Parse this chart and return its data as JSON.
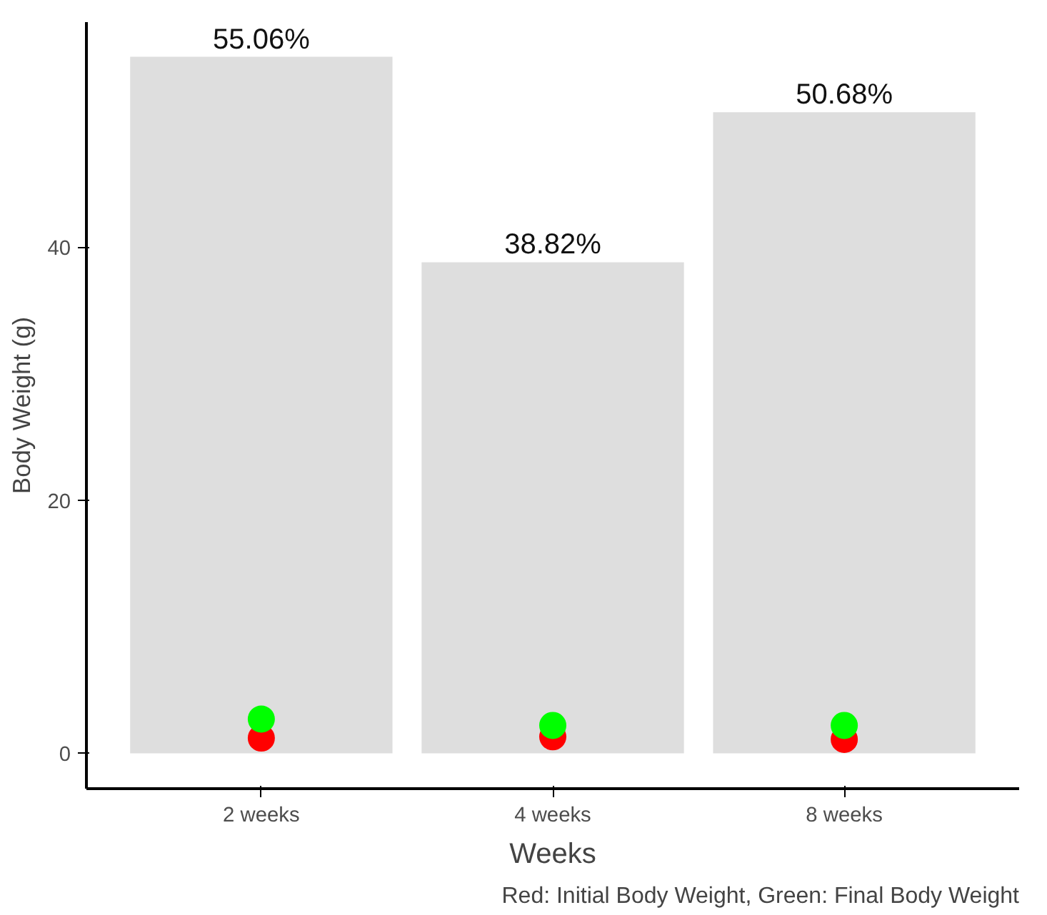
{
  "chart_data": {
    "type": "bar",
    "categories": [
      "2 weeks",
      "4 weeks",
      "8 weeks"
    ],
    "values": [
      55.06,
      38.82,
      50.68
    ],
    "color": "#dedede",
    "value_labels": [
      "55.06%",
      "38.82%",
      "50.68%"
    ],
    "xlabel": "Weeks",
    "ylabel": "Body Weight (g)",
    "ylim": [
      -2.8,
      57.8
    ],
    "yticks": [
      0,
      20,
      40
    ],
    "grid": false,
    "series": [
      {
        "type": "scatter",
        "x": [
          "2 weeks",
          "4 weeks",
          "8 weeks"
        ],
        "color": "#ff0000",
        "values": [
          1.2,
          1.3,
          1.1
        ]
      },
      {
        "type": "scatter",
        "x": [
          "2 weeks",
          "4 weeks",
          "8 weeks"
        ],
        "color": "#00ff00",
        "values": [
          2.7,
          2.2,
          2.2
        ]
      }
    ],
    "marker": "circle",
    "annotations": [
      "Red: Initial Body Weight, Green: Final Body Weight"
    ]
  }
}
